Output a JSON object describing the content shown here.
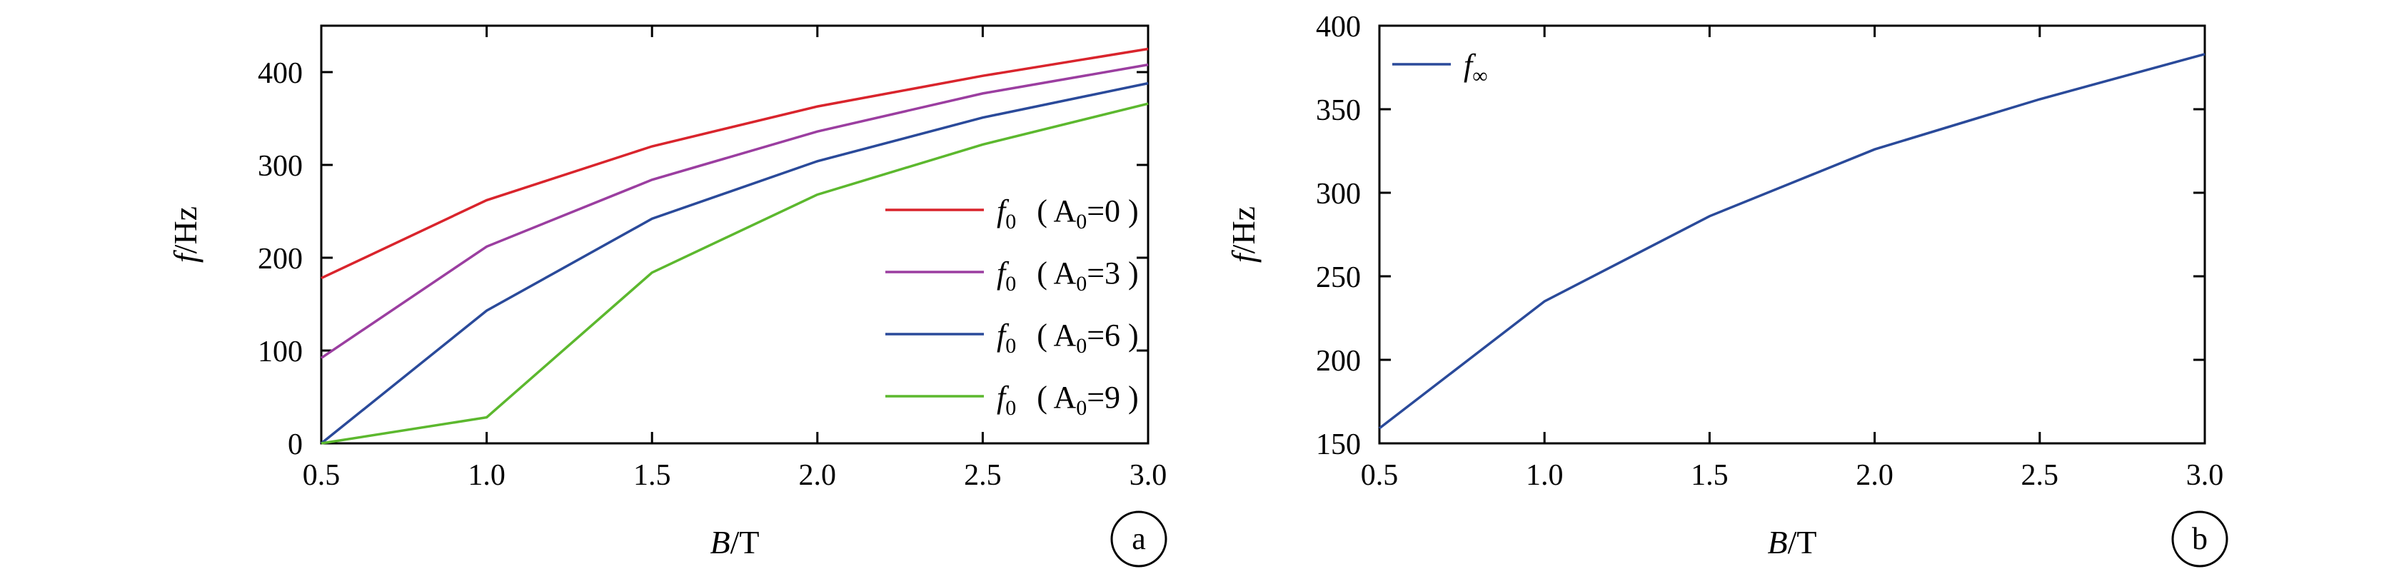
{
  "chart_data": [
    {
      "type": "line",
      "panel_label": "a",
      "xlabel": "B/T",
      "ylabel": "f/Hz",
      "xlim": [
        0.5,
        3.0
      ],
      "ylim": [
        0,
        450
      ],
      "xticks": [
        "0.5",
        "1.0",
        "1.5",
        "2.0",
        "2.5",
        "3.0"
      ],
      "yticks": [
        "0",
        "100",
        "200",
        "300",
        "400"
      ],
      "legend_position": "right",
      "x": [
        0.5,
        1.0,
        1.5,
        2.0,
        2.5,
        3.0
      ],
      "series": [
        {
          "name": "f0 ( A0=0 )",
          "label_main": "f",
          "label_sub": "0",
          "label_rest": "( A",
          "label_sub2": "0",
          "label_tail": "=0 )",
          "color": "#d9242c",
          "values": [
            178,
            262,
            320,
            363,
            396,
            425
          ]
        },
        {
          "name": "f0 ( A0=3 )",
          "label_main": "f",
          "label_sub": "0",
          "label_rest": "( A",
          "label_sub2": "0",
          "label_tail": "=3 )",
          "color": "#9b3ea0",
          "values": [
            92,
            212,
            284,
            336,
            377,
            408
          ]
        },
        {
          "name": "f0 ( A0=6 )",
          "label_main": "f",
          "label_sub": "0",
          "label_rest": "( A",
          "label_sub2": "0",
          "label_tail": "=6 )",
          "color": "#2a4a9a",
          "values": [
            0,
            143,
            242,
            304,
            351,
            388
          ]
        },
        {
          "name": "f0 ( A0=9 )",
          "label_main": "f",
          "label_sub": "0",
          "label_rest": "( A",
          "label_sub2": "0",
          "label_tail": "=9 )",
          "color": "#5cb82e",
          "values": [
            0,
            28,
            184,
            268,
            322,
            366
          ]
        }
      ]
    },
    {
      "type": "line",
      "panel_label": "b",
      "xlabel": "B/T",
      "ylabel": "f/Hz",
      "xlim": [
        0.5,
        3.0
      ],
      "ylim": [
        150,
        400
      ],
      "xticks": [
        "0.5",
        "1.0",
        "1.5",
        "2.0",
        "2.5",
        "3.0"
      ],
      "yticks": [
        "150",
        "200",
        "250",
        "300",
        "350",
        "400"
      ],
      "legend_position": "top-left",
      "x": [
        0.5,
        1.0,
        1.5,
        2.0,
        2.5,
        3.0
      ],
      "series": [
        {
          "name": "f∞",
          "label_main": "f",
          "label_sub": "∞",
          "color": "#2a4a9a",
          "values": [
            159,
            235,
            286,
            326,
            356,
            383
          ]
        }
      ]
    }
  ]
}
